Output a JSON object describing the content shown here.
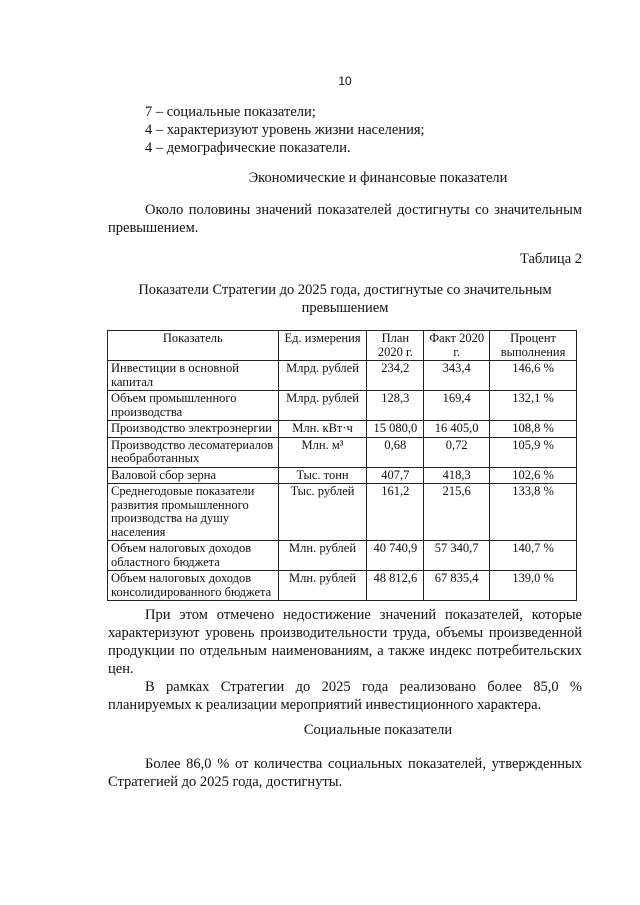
{
  "page_number": "10",
  "list_items": [
    "7 – социальные показатели;",
    "4 – характеризуют уровень жизни населения;",
    "4 – демографические показатели."
  ],
  "section1_heading": "Экономические и финансовые показатели",
  "section1_paragraph": "Около половины значений показателей достигнуты со значительным превышением.",
  "table_caption": "Таблица 2",
  "table_title": "Показатели Стратегии до 2025 года, достигнутые со значительным превышением",
  "table": {
    "headers": [
      "Показатель",
      "Ед. измерения",
      "План 2020 г.",
      "Факт 2020 г.",
      "Процент выполнения"
    ],
    "rows": [
      [
        "Инвестиции в основной капитал",
        "Млрд. рублей",
        "234,2",
        "343,4",
        "146,6 %"
      ],
      [
        "Объем промышленного производства",
        "Млрд. рублей",
        "128,3",
        "169,4",
        "132,1 %"
      ],
      [
        "Производство электроэнергии",
        "Млн. кВт·ч",
        "15 080,0",
        "16 405,0",
        "108,8 %"
      ],
      [
        "Производство лесоматериалов необработанных",
        "Млн. м³",
        "0,68",
        "0,72",
        "105,9 %"
      ],
      [
        "Валовой сбор зерна",
        "Тыс. тонн",
        "407,7",
        "418,3",
        "102,6 %"
      ],
      [
        "Среднегодовые показатели развития промышленного производства на душу населения",
        "Тыс. рублей",
        "161,2",
        "215,6",
        "133,8 %"
      ],
      [
        "Объем налоговых доходов областного бюджета",
        "Млн. рублей",
        "40 740,9",
        "57 340,7",
        "140,7 %"
      ],
      [
        "Объем налоговых доходов консолидированного бюджета",
        "Млн. рублей",
        "48 812,6",
        "67 835,4",
        "139,0 %"
      ]
    ]
  },
  "paragraph2": "При этом отмечено недостижение значений показателей, которые характеризуют уровень производительности труда, объемы произведенной продукции по отдельным наименованиям, а также индекс потребительских цен.",
  "paragraph3": "В рамках Стратегии до 2025 года реализовано более 85,0 % планируемых к реализации мероприятий инвестиционного характера.",
  "section2_heading": "Социальные показатели",
  "paragraph4": "Более 86,0 % от количества социальных показателей, утвержденных Стратегией до 2025 года, достигнуты."
}
